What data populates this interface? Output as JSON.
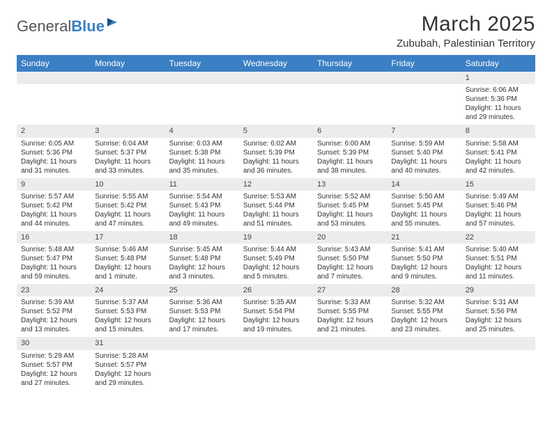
{
  "logo": {
    "text1": "General",
    "text2": "Blue"
  },
  "title": "March 2025",
  "location": "Zububah, Palestinian Territory",
  "header_bg": "#3b7fc4",
  "header_fg": "#ffffff",
  "daynum_bg": "#ececec",
  "text_color": "#333333",
  "weekdays": [
    "Sunday",
    "Monday",
    "Tuesday",
    "Wednesday",
    "Thursday",
    "Friday",
    "Saturday"
  ],
  "weeks": [
    [
      {
        "empty": true
      },
      {
        "empty": true
      },
      {
        "empty": true
      },
      {
        "empty": true
      },
      {
        "empty": true
      },
      {
        "empty": true
      },
      {
        "n": "1",
        "sunrise": "Sunrise: 6:06 AM",
        "sunset": "Sunset: 5:36 PM",
        "daylight": "Daylight: 11 hours and 29 minutes."
      }
    ],
    [
      {
        "n": "2",
        "sunrise": "Sunrise: 6:05 AM",
        "sunset": "Sunset: 5:36 PM",
        "daylight": "Daylight: 11 hours and 31 minutes."
      },
      {
        "n": "3",
        "sunrise": "Sunrise: 6:04 AM",
        "sunset": "Sunset: 5:37 PM",
        "daylight": "Daylight: 11 hours and 33 minutes."
      },
      {
        "n": "4",
        "sunrise": "Sunrise: 6:03 AM",
        "sunset": "Sunset: 5:38 PM",
        "daylight": "Daylight: 11 hours and 35 minutes."
      },
      {
        "n": "5",
        "sunrise": "Sunrise: 6:02 AM",
        "sunset": "Sunset: 5:39 PM",
        "daylight": "Daylight: 11 hours and 36 minutes."
      },
      {
        "n": "6",
        "sunrise": "Sunrise: 6:00 AM",
        "sunset": "Sunset: 5:39 PM",
        "daylight": "Daylight: 11 hours and 38 minutes."
      },
      {
        "n": "7",
        "sunrise": "Sunrise: 5:59 AM",
        "sunset": "Sunset: 5:40 PM",
        "daylight": "Daylight: 11 hours and 40 minutes."
      },
      {
        "n": "8",
        "sunrise": "Sunrise: 5:58 AM",
        "sunset": "Sunset: 5:41 PM",
        "daylight": "Daylight: 11 hours and 42 minutes."
      }
    ],
    [
      {
        "n": "9",
        "sunrise": "Sunrise: 5:57 AM",
        "sunset": "Sunset: 5:42 PM",
        "daylight": "Daylight: 11 hours and 44 minutes."
      },
      {
        "n": "10",
        "sunrise": "Sunrise: 5:55 AM",
        "sunset": "Sunset: 5:42 PM",
        "daylight": "Daylight: 11 hours and 47 minutes."
      },
      {
        "n": "11",
        "sunrise": "Sunrise: 5:54 AM",
        "sunset": "Sunset: 5:43 PM",
        "daylight": "Daylight: 11 hours and 49 minutes."
      },
      {
        "n": "12",
        "sunrise": "Sunrise: 5:53 AM",
        "sunset": "Sunset: 5:44 PM",
        "daylight": "Daylight: 11 hours and 51 minutes."
      },
      {
        "n": "13",
        "sunrise": "Sunrise: 5:52 AM",
        "sunset": "Sunset: 5:45 PM",
        "daylight": "Daylight: 11 hours and 53 minutes."
      },
      {
        "n": "14",
        "sunrise": "Sunrise: 5:50 AM",
        "sunset": "Sunset: 5:45 PM",
        "daylight": "Daylight: 11 hours and 55 minutes."
      },
      {
        "n": "15",
        "sunrise": "Sunrise: 5:49 AM",
        "sunset": "Sunset: 5:46 PM",
        "daylight": "Daylight: 11 hours and 57 minutes."
      }
    ],
    [
      {
        "n": "16",
        "sunrise": "Sunrise: 5:48 AM",
        "sunset": "Sunset: 5:47 PM",
        "daylight": "Daylight: 11 hours and 59 minutes."
      },
      {
        "n": "17",
        "sunrise": "Sunrise: 5:46 AM",
        "sunset": "Sunset: 5:48 PM",
        "daylight": "Daylight: 12 hours and 1 minute."
      },
      {
        "n": "18",
        "sunrise": "Sunrise: 5:45 AM",
        "sunset": "Sunset: 5:48 PM",
        "daylight": "Daylight: 12 hours and 3 minutes."
      },
      {
        "n": "19",
        "sunrise": "Sunrise: 5:44 AM",
        "sunset": "Sunset: 5:49 PM",
        "daylight": "Daylight: 12 hours and 5 minutes."
      },
      {
        "n": "20",
        "sunrise": "Sunrise: 5:43 AM",
        "sunset": "Sunset: 5:50 PM",
        "daylight": "Daylight: 12 hours and 7 minutes."
      },
      {
        "n": "21",
        "sunrise": "Sunrise: 5:41 AM",
        "sunset": "Sunset: 5:50 PM",
        "daylight": "Daylight: 12 hours and 9 minutes."
      },
      {
        "n": "22",
        "sunrise": "Sunrise: 5:40 AM",
        "sunset": "Sunset: 5:51 PM",
        "daylight": "Daylight: 12 hours and 11 minutes."
      }
    ],
    [
      {
        "n": "23",
        "sunrise": "Sunrise: 5:39 AM",
        "sunset": "Sunset: 5:52 PM",
        "daylight": "Daylight: 12 hours and 13 minutes."
      },
      {
        "n": "24",
        "sunrise": "Sunrise: 5:37 AM",
        "sunset": "Sunset: 5:53 PM",
        "daylight": "Daylight: 12 hours and 15 minutes."
      },
      {
        "n": "25",
        "sunrise": "Sunrise: 5:36 AM",
        "sunset": "Sunset: 5:53 PM",
        "daylight": "Daylight: 12 hours and 17 minutes."
      },
      {
        "n": "26",
        "sunrise": "Sunrise: 5:35 AM",
        "sunset": "Sunset: 5:54 PM",
        "daylight": "Daylight: 12 hours and 19 minutes."
      },
      {
        "n": "27",
        "sunrise": "Sunrise: 5:33 AM",
        "sunset": "Sunset: 5:55 PM",
        "daylight": "Daylight: 12 hours and 21 minutes."
      },
      {
        "n": "28",
        "sunrise": "Sunrise: 5:32 AM",
        "sunset": "Sunset: 5:55 PM",
        "daylight": "Daylight: 12 hours and 23 minutes."
      },
      {
        "n": "29",
        "sunrise": "Sunrise: 5:31 AM",
        "sunset": "Sunset: 5:56 PM",
        "daylight": "Daylight: 12 hours and 25 minutes."
      }
    ],
    [
      {
        "n": "30",
        "sunrise": "Sunrise: 5:29 AM",
        "sunset": "Sunset: 5:57 PM",
        "daylight": "Daylight: 12 hours and 27 minutes."
      },
      {
        "n": "31",
        "sunrise": "Sunrise: 5:28 AM",
        "sunset": "Sunset: 5:57 PM",
        "daylight": "Daylight: 12 hours and 29 minutes."
      },
      {
        "empty": true
      },
      {
        "empty": true
      },
      {
        "empty": true
      },
      {
        "empty": true
      },
      {
        "empty": true
      }
    ]
  ]
}
